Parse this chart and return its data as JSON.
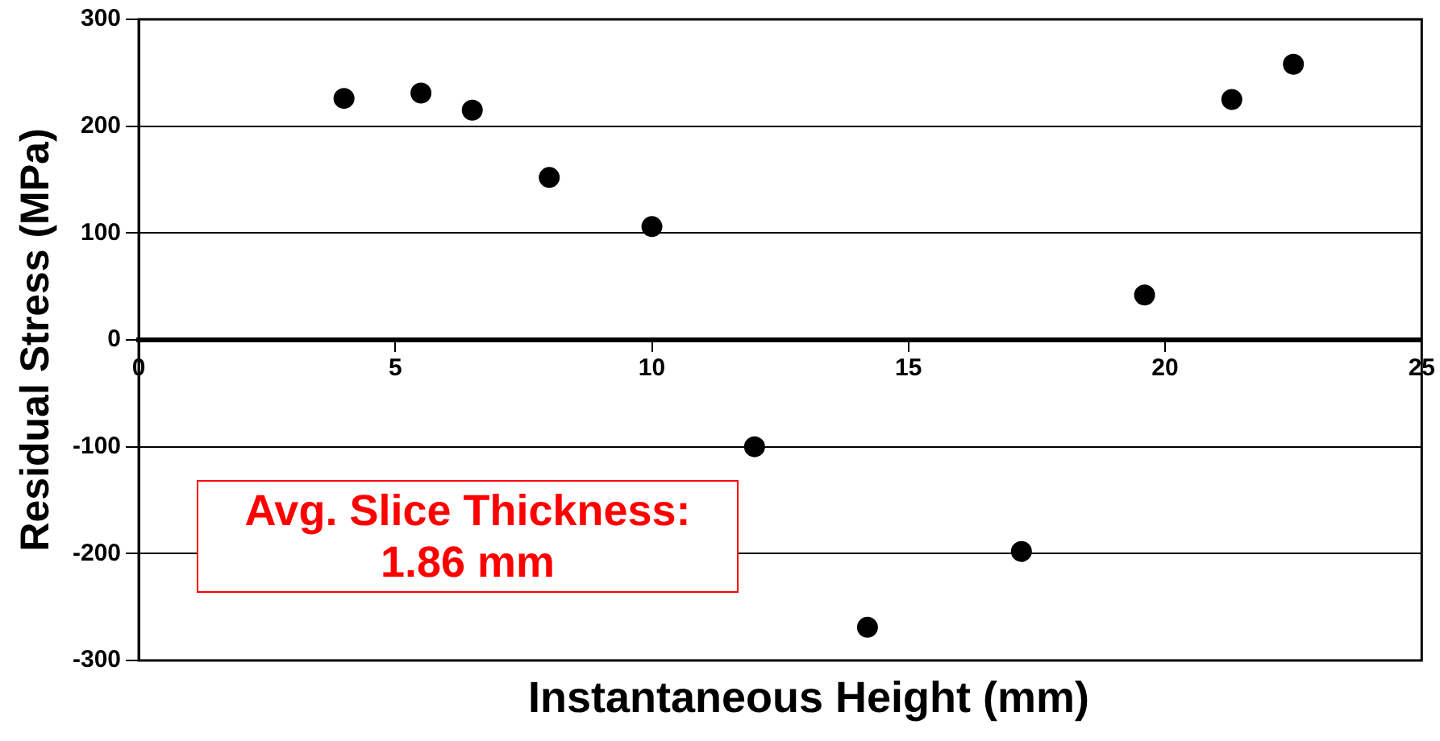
{
  "chart_data": {
    "type": "scatter",
    "xlabel": "Instantaneous Height (mm)",
    "ylabel": "Residual Stress (MPa)",
    "x": [
      4,
      5.5,
      6.5,
      8,
      10,
      12,
      14.2,
      17.2,
      19.6,
      21.3,
      22.5
    ],
    "series": [
      {
        "color": "#000000",
        "values": [
          226,
          231,
          215,
          152,
          106,
          -100,
          -269,
          -198,
          42,
          225,
          258
        ]
      }
    ],
    "xlim": [
      0,
      25
    ],
    "xticks": [
      0,
      5,
      10,
      15,
      20,
      25
    ],
    "ylim": [
      -300,
      300
    ],
    "yticks": [
      -300,
      -200,
      -100,
      0,
      100,
      200,
      300
    ],
    "grid": "y",
    "legend": false,
    "marker": "circle",
    "annotations": [
      "Avg. Slice Thickness: 1.86 mm"
    ]
  }
}
